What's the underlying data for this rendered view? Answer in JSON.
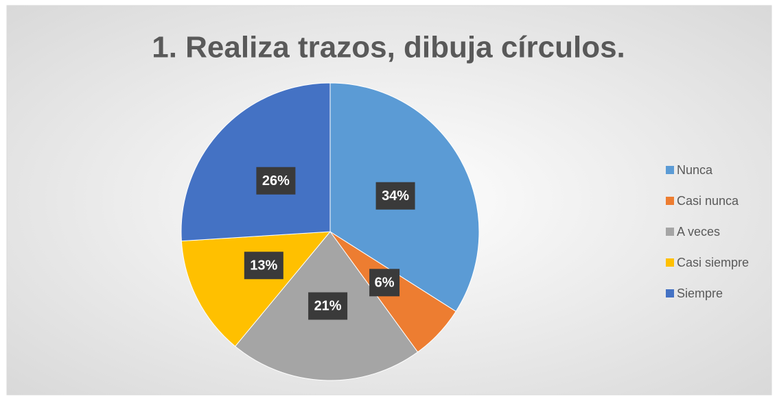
{
  "chart_data": {
    "type": "pie",
    "title": "1. Realiza trazos, dibuja círculos.",
    "categories": [
      "Nunca",
      "Casi nunca",
      "A veces",
      "Casi siempre",
      "Siempre"
    ],
    "values": [
      34,
      6,
      21,
      13,
      26
    ],
    "value_labels": [
      "34%",
      "6%",
      "21%",
      "13%",
      "26%"
    ],
    "colors": [
      "#5b9bd5",
      "#ed7d31",
      "#a5a5a5",
      "#ffc000",
      "#4472c4"
    ],
    "legend": "right"
  }
}
